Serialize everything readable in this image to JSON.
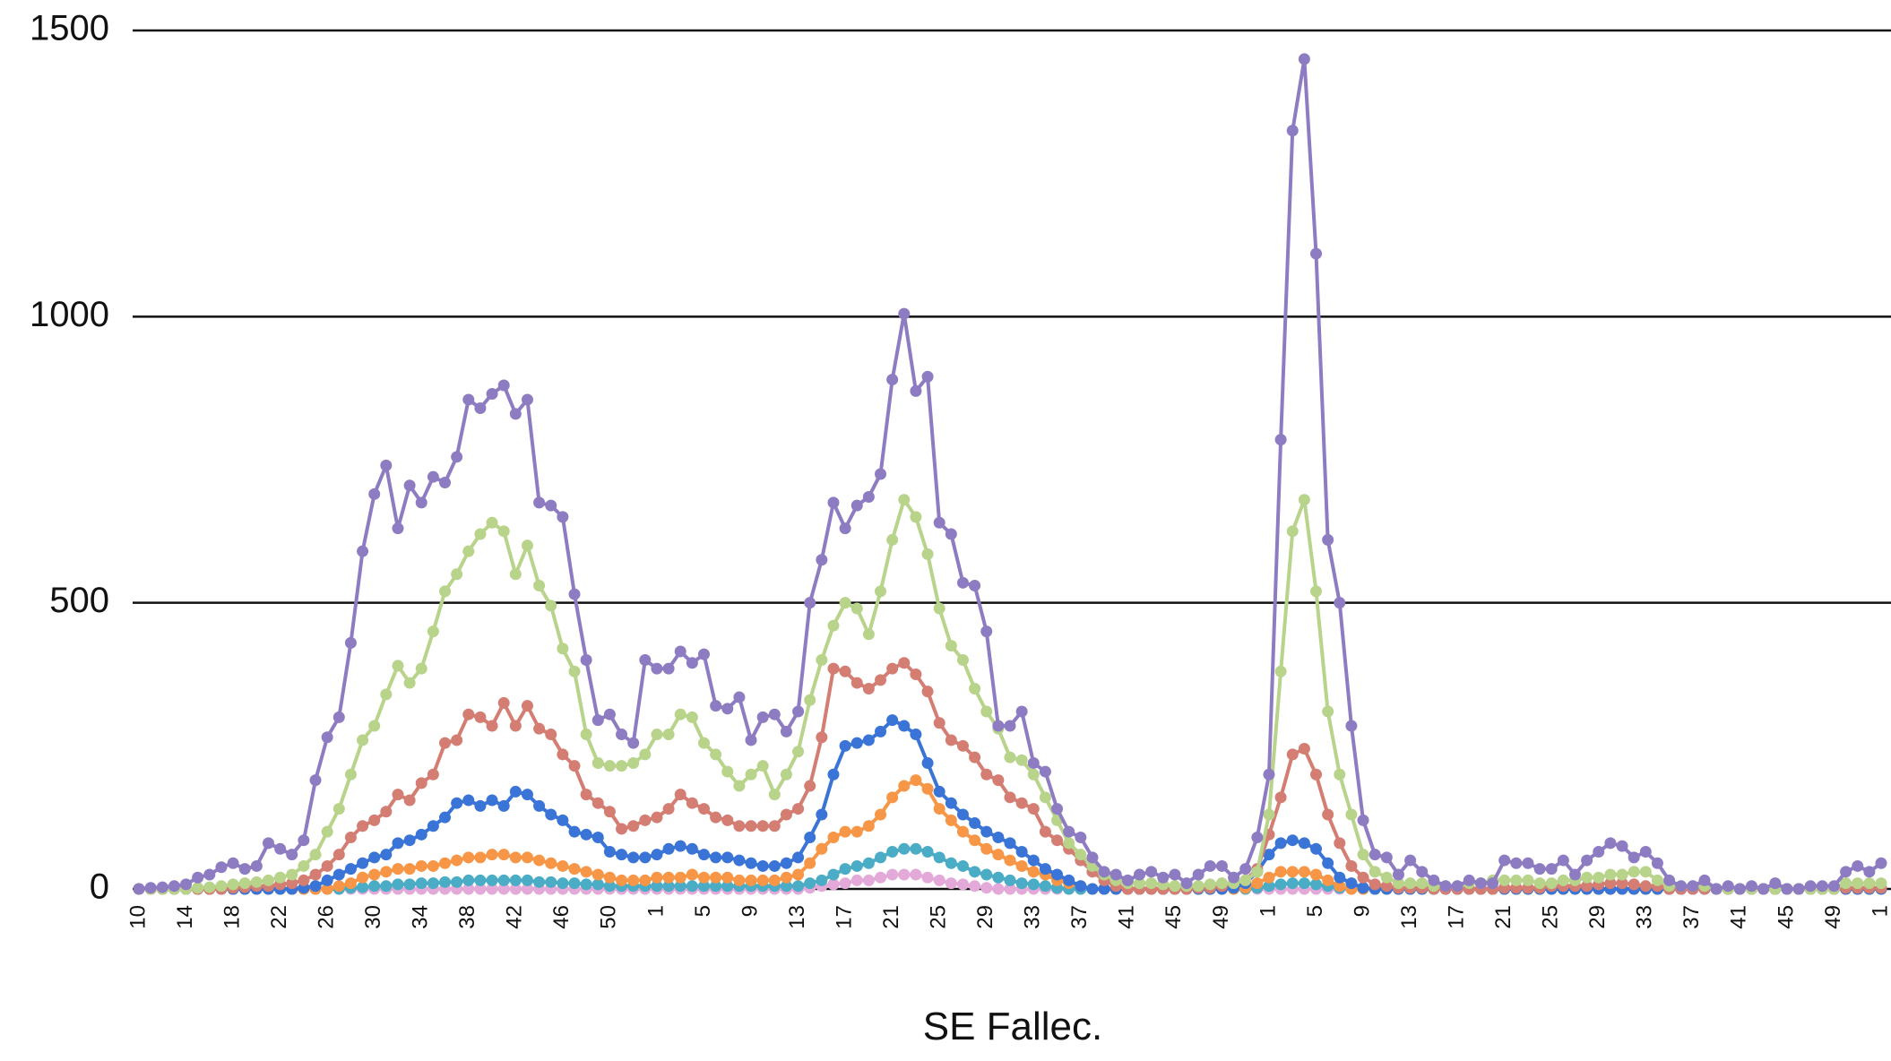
{
  "chart_data": {
    "type": "line",
    "x_label": "SE Fallec.",
    "categories": [
      "10",
      null,
      null,
      null,
      "14",
      null,
      null,
      null,
      "18",
      null,
      null,
      null,
      "22",
      null,
      null,
      null,
      "26",
      null,
      null,
      null,
      "30",
      null,
      null,
      null,
      "34",
      null,
      null,
      null,
      "38",
      null,
      null,
      null,
      "42",
      null,
      null,
      null,
      "46",
      null,
      null,
      null,
      "50",
      null,
      null,
      null,
      "1",
      null,
      null,
      null,
      "5",
      null,
      null,
      null,
      "9",
      null,
      null,
      null,
      "13",
      null,
      null,
      null,
      "17",
      null,
      null,
      null,
      "21",
      null,
      null,
      null,
      "25",
      null,
      null,
      null,
      "29",
      null,
      null,
      null,
      "33",
      null,
      null,
      null,
      "37",
      null,
      null,
      null,
      "41",
      null,
      null,
      null,
      "45",
      null,
      null,
      null,
      "49",
      null,
      null,
      null,
      "1",
      null,
      null,
      null,
      "5",
      null,
      null,
      null,
      "9",
      null,
      null,
      null,
      "13",
      null,
      null,
      null,
      "17",
      null,
      null,
      null,
      "21",
      null,
      null,
      null,
      "25",
      null,
      null,
      null,
      "29",
      null,
      null,
      null,
      "33",
      null,
      null,
      null,
      "37",
      null,
      null,
      null,
      "41",
      null,
      null,
      null,
      "45",
      null,
      null,
      null,
      "49",
      null,
      null,
      null,
      "1"
    ],
    "ylim": [
      0,
      1500
    ],
    "yticks": [
      0,
      500,
      1000,
      1500
    ],
    "grid": true,
    "series": [
      {
        "color": "#e3a9d9",
        "values": [
          0,
          0,
          0,
          0,
          0,
          0,
          0,
          0,
          0,
          0,
          0,
          0,
          0,
          0,
          0,
          0,
          0,
          0,
          0,
          0,
          0,
          0,
          0,
          0,
          0,
          0,
          0,
          0,
          0,
          0,
          0,
          0,
          0,
          0,
          0,
          0,
          0,
          0,
          0,
          0,
          0,
          0,
          0,
          0,
          0,
          0,
          0,
          0,
          0,
          0,
          0,
          0,
          0,
          0,
          0,
          0,
          0,
          2,
          5,
          8,
          10,
          15,
          15,
          20,
          25,
          25,
          25,
          20,
          15,
          10,
          8,
          5,
          2,
          0,
          0,
          0,
          0,
          0,
          0,
          0,
          0,
          0,
          0,
          0,
          0,
          0,
          0,
          0,
          0,
          0,
          0,
          0,
          0,
          0,
          0,
          0,
          0,
          0,
          0,
          0,
          0,
          0,
          0,
          0,
          0,
          0,
          0,
          0,
          0,
          0,
          0,
          0,
          0,
          0,
          0,
          0,
          0,
          0,
          0,
          0,
          0,
          0,
          0,
          0,
          0,
          0,
          0,
          0,
          0,
          0,
          0,
          0,
          0,
          0,
          0,
          0,
          0,
          0,
          0,
          0,
          0,
          0,
          0,
          0,
          0,
          0,
          0,
          0,
          0
        ]
      },
      {
        "color": "#4bacc6",
        "values": [
          0,
          0,
          0,
          0,
          0,
          0,
          0,
          0,
          0,
          0,
          0,
          0,
          0,
          0,
          0,
          0,
          0,
          0,
          2,
          3,
          5,
          5,
          8,
          8,
          10,
          10,
          12,
          12,
          15,
          15,
          15,
          15,
          15,
          15,
          12,
          12,
          10,
          10,
          8,
          8,
          5,
          5,
          5,
          5,
          5,
          5,
          5,
          5,
          5,
          5,
          5,
          5,
          5,
          5,
          5,
          5,
          5,
          10,
          15,
          25,
          35,
          40,
          45,
          55,
          65,
          70,
          70,
          65,
          55,
          45,
          40,
          30,
          25,
          20,
          15,
          10,
          8,
          5,
          2,
          0,
          0,
          0,
          0,
          0,
          0,
          0,
          0,
          0,
          0,
          0,
          0,
          0,
          0,
          0,
          0,
          2,
          5,
          8,
          10,
          10,
          8,
          5,
          2,
          0,
          0,
          0,
          0,
          0,
          0,
          0,
          0,
          0,
          0,
          0,
          0,
          0,
          0,
          0,
          0,
          0,
          0,
          0,
          0,
          0,
          0,
          0,
          0,
          0,
          0,
          0,
          0,
          0,
          0,
          0,
          0,
          0,
          0,
          0,
          0,
          0,
          0,
          0,
          0,
          0,
          0,
          0,
          0,
          0,
          0
        ]
      },
      {
        "color": "#f79646",
        "values": [
          0,
          0,
          0,
          0,
          0,
          0,
          0,
          0,
          0,
          0,
          0,
          0,
          0,
          0,
          0,
          0,
          0,
          5,
          10,
          20,
          25,
          30,
          35,
          35,
          40,
          40,
          45,
          50,
          55,
          55,
          60,
          60,
          55,
          55,
          50,
          45,
          40,
          35,
          30,
          25,
          20,
          15,
          15,
          15,
          20,
          20,
          20,
          25,
          20,
          20,
          20,
          15,
          15,
          15,
          15,
          20,
          25,
          45,
          70,
          90,
          100,
          100,
          110,
          130,
          160,
          180,
          190,
          175,
          140,
          120,
          100,
          85,
          70,
          60,
          50,
          40,
          30,
          25,
          15,
          10,
          5,
          0,
          0,
          0,
          0,
          0,
          0,
          0,
          0,
          0,
          0,
          0,
          0,
          0,
          2,
          10,
          20,
          30,
          30,
          30,
          25,
          15,
          5,
          0,
          0,
          0,
          0,
          0,
          0,
          0,
          0,
          0,
          0,
          0,
          0,
          0,
          0,
          0,
          0,
          0,
          0,
          0,
          0,
          0,
          0,
          0,
          0,
          0,
          0,
          0,
          0,
          0,
          0,
          0,
          0,
          0,
          0,
          0,
          0,
          0,
          0,
          0,
          0,
          0,
          0,
          0,
          0,
          0,
          0
        ]
      },
      {
        "color": "#3a74d6",
        "values": [
          0,
          0,
          0,
          0,
          0,
          0,
          0,
          0,
          0,
          0,
          0,
          0,
          0,
          0,
          2,
          5,
          15,
          25,
          35,
          45,
          55,
          60,
          80,
          85,
          95,
          110,
          125,
          150,
          155,
          145,
          155,
          145,
          170,
          165,
          145,
          130,
          120,
          100,
          95,
          90,
          65,
          60,
          55,
          55,
          60,
          70,
          75,
          70,
          60,
          55,
          55,
          50,
          45,
          40,
          40,
          45,
          55,
          90,
          130,
          200,
          250,
          255,
          260,
          275,
          295,
          285,
          270,
          220,
          170,
          150,
          130,
          115,
          100,
          90,
          80,
          65,
          50,
          35,
          25,
          15,
          5,
          0,
          0,
          0,
          0,
          0,
          0,
          0,
          0,
          0,
          0,
          0,
          0,
          2,
          10,
          30,
          60,
          80,
          85,
          80,
          70,
          45,
          20,
          10,
          2,
          0,
          0,
          0,
          0,
          0,
          0,
          0,
          0,
          0,
          0,
          0,
          0,
          0,
          0,
          0,
          0,
          0,
          0,
          0,
          0,
          0,
          0,
          0,
          0,
          0,
          0,
          0,
          0,
          0,
          0,
          0,
          0,
          0,
          0,
          0,
          0,
          0,
          0,
          0,
          0,
          0,
          0,
          0,
          0
        ]
      },
      {
        "color": "#d47d72",
        "values": [
          0,
          0,
          0,
          0,
          0,
          0,
          0,
          0,
          2,
          3,
          5,
          5,
          8,
          10,
          15,
          25,
          40,
          60,
          90,
          110,
          120,
          135,
          165,
          155,
          185,
          200,
          255,
          260,
          305,
          300,
          285,
          325,
          285,
          320,
          280,
          270,
          235,
          215,
          165,
          150,
          135,
          105,
          110,
          120,
          125,
          140,
          165,
          150,
          140,
          125,
          120,
          110,
          110,
          110,
          110,
          130,
          140,
          180,
          265,
          385,
          380,
          360,
          350,
          365,
          385,
          395,
          375,
          345,
          290,
          260,
          250,
          230,
          200,
          190,
          160,
          150,
          140,
          100,
          85,
          70,
          50,
          30,
          15,
          5,
          0,
          0,
          0,
          0,
          0,
          0,
          2,
          2,
          5,
          10,
          15,
          35,
          95,
          160,
          235,
          245,
          200,
          130,
          80,
          40,
          20,
          8,
          5,
          2,
          2,
          2,
          0,
          0,
          0,
          0,
          0,
          0,
          2,
          2,
          2,
          2,
          5,
          5,
          5,
          5,
          8,
          10,
          10,
          8,
          5,
          5,
          0,
          0,
          0,
          0,
          0,
          0,
          0,
          0,
          0,
          0,
          0,
          0,
          0,
          0,
          0,
          2,
          2,
          2,
          2
        ]
      },
      {
        "color": "#b8d38a",
        "values": [
          0,
          0,
          0,
          0,
          0,
          2,
          3,
          5,
          8,
          10,
          12,
          15,
          20,
          25,
          40,
          60,
          100,
          140,
          200,
          260,
          285,
          340,
          390,
          360,
          385,
          450,
          520,
          550,
          590,
          620,
          640,
          625,
          550,
          600,
          530,
          495,
          420,
          380,
          270,
          220,
          215,
          215,
          220,
          235,
          270,
          270,
          305,
          300,
          255,
          235,
          205,
          180,
          200,
          215,
          165,
          200,
          240,
          330,
          400,
          460,
          500,
          490,
          445,
          520,
          610,
          680,
          650,
          585,
          490,
          425,
          400,
          350,
          310,
          280,
          230,
          225,
          200,
          160,
          120,
          80,
          60,
          40,
          25,
          15,
          10,
          10,
          10,
          8,
          5,
          5,
          5,
          8,
          10,
          10,
          15,
          30,
          130,
          380,
          625,
          680,
          520,
          310,
          200,
          130,
          60,
          30,
          20,
          10,
          10,
          10,
          5,
          5,
          5,
          10,
          10,
          15,
          15,
          15,
          15,
          10,
          10,
          15,
          15,
          20,
          20,
          25,
          25,
          30,
          30,
          15,
          5,
          5,
          5,
          5,
          0,
          0,
          0,
          0,
          0,
          0,
          0,
          0,
          0,
          0,
          0,
          10,
          10,
          10,
          10
        ]
      },
      {
        "color": "#8e7cc3",
        "values": [
          0,
          2,
          3,
          5,
          8,
          20,
          25,
          38,
          45,
          35,
          40,
          80,
          70,
          60,
          85,
          190,
          265,
          300,
          430,
          590,
          690,
          740,
          630,
          705,
          675,
          720,
          710,
          755,
          855,
          840,
          865,
          880,
          830,
          855,
          675,
          670,
          650,
          515,
          400,
          295,
          305,
          270,
          255,
          400,
          385,
          385,
          415,
          395,
          410,
          320,
          315,
          335,
          260,
          300,
          305,
          275,
          310,
          500,
          575,
          675,
          630,
          670,
          685,
          725,
          890,
          1005,
          870,
          895,
          640,
          620,
          535,
          530,
          450,
          285,
          285,
          310,
          220,
          205,
          140,
          100,
          90,
          55,
          30,
          25,
          15,
          25,
          30,
          20,
          25,
          10,
          25,
          40,
          40,
          20,
          35,
          90,
          200,
          785,
          1325,
          1450,
          1110,
          610,
          500,
          285,
          120,
          60,
          55,
          25,
          50,
          30,
          15,
          5,
          5,
          15,
          10,
          10,
          50,
          45,
          45,
          35,
          35,
          50,
          25,
          50,
          65,
          80,
          75,
          55,
          65,
          45,
          15,
          5,
          5,
          15,
          0,
          5,
          0,
          5,
          0,
          10,
          0,
          0,
          5,
          5,
          5,
          30,
          40,
          30,
          45
        ]
      }
    ]
  }
}
